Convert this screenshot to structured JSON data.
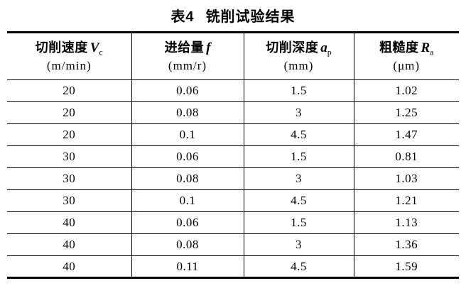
{
  "title": {
    "prefix": "表4",
    "text": "铣削试验结果"
  },
  "table": {
    "headers": [
      {
        "name": "切削速度",
        "symbol": "V",
        "sub": "c",
        "unit": "(m/min)"
      },
      {
        "name": "进给量",
        "symbol": "f",
        "sub": "",
        "unit": "(mm/r)"
      },
      {
        "name": "切削深度",
        "symbol": "a",
        "sub": "p",
        "unit": "(mm)"
      },
      {
        "name": "粗糙度",
        "symbol": "R",
        "sub": "a",
        "unit": "(μm)"
      }
    ],
    "rows": [
      [
        "20",
        "0.06",
        "1.5",
        "1.02"
      ],
      [
        "20",
        "0.08",
        "3",
        "1.25"
      ],
      [
        "20",
        "0.1",
        "4.5",
        "1.47"
      ],
      [
        "30",
        "0.06",
        "1.5",
        "0.81"
      ],
      [
        "30",
        "0.08",
        "3",
        "1.03"
      ],
      [
        "30",
        "0.1",
        "4.5",
        "1.21"
      ],
      [
        "40",
        "0.06",
        "1.5",
        "1.13"
      ],
      [
        "40",
        "0.08",
        "3",
        "1.36"
      ],
      [
        "40",
        "0.11",
        "4.5",
        "1.59"
      ]
    ]
  },
  "chart_data": {
    "type": "table",
    "title": "表4 铣削试验结果",
    "columns": [
      "切削速度 Vc (m/min)",
      "进给量 f (mm/r)",
      "切削深度 ap (mm)",
      "粗糙度 Ra (μm)"
    ],
    "rows": [
      [
        20,
        0.06,
        1.5,
        1.02
      ],
      [
        20,
        0.08,
        3,
        1.25
      ],
      [
        20,
        0.1,
        4.5,
        1.47
      ],
      [
        30,
        0.06,
        1.5,
        0.81
      ],
      [
        30,
        0.08,
        3,
        1.03
      ],
      [
        30,
        0.1,
        4.5,
        1.21
      ],
      [
        40,
        0.06,
        1.5,
        1.13
      ],
      [
        40,
        0.08,
        3,
        1.36
      ],
      [
        40,
        0.11,
        4.5,
        1.59
      ]
    ]
  }
}
